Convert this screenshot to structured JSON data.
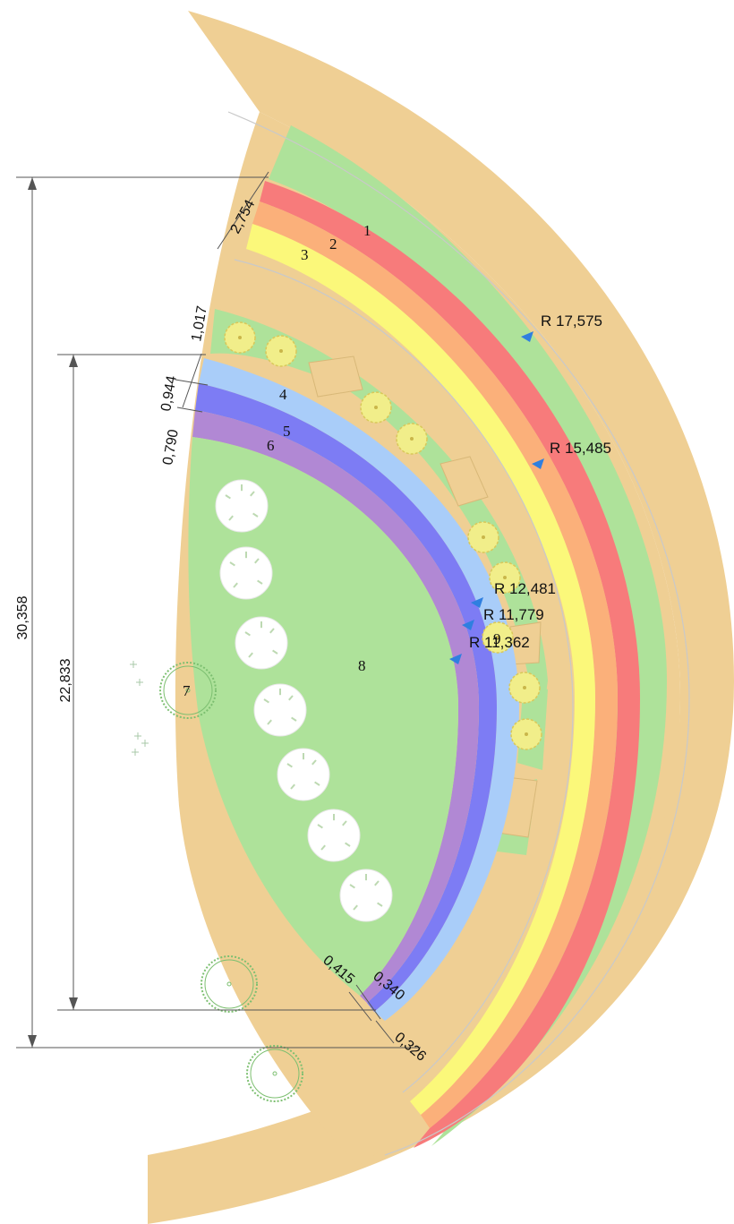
{
  "colors": {
    "path": "#efcf94",
    "lawn": "#aee29a",
    "band1": "#f77b7b",
    "band2": "#fbb07a",
    "band3": "#fbf87a",
    "band4": "#a9cdf9",
    "band5": "#7d7cf4",
    "band6": "#b188d4",
    "shrub": "#f1ee8a",
    "tree": "#ffffff",
    "conifer": "#7cbf70",
    "radius_arrow": "#2f7fe0"
  },
  "overall_dimensions": {
    "outer": "30,358",
    "inner": "22,833"
  },
  "band_width_labels": {
    "outer_group": "2,754",
    "gap": "1,017",
    "band4": "0,944",
    "band5": "0,790",
    "band6_end": "0,415",
    "band5_end": "0,340",
    "band1_end": "0,326"
  },
  "radii": [
    "R 17,575",
    "R 15,485",
    "R 12,481",
    "R 11,779",
    "R 11,362"
  ],
  "band_numbers": [
    "1",
    "2",
    "3",
    "4",
    "5",
    "6"
  ],
  "legend_numbers": {
    "conifer": "7",
    "tree": "8",
    "shrub": "9"
  }
}
